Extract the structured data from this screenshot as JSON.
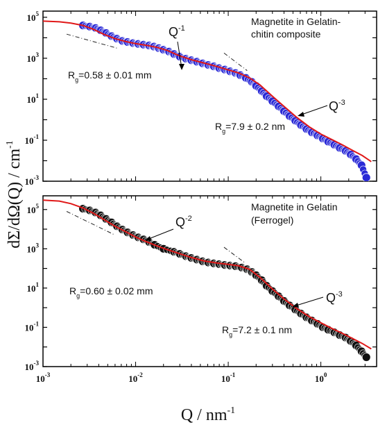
{
  "chart_data": [
    {
      "type": "scatter",
      "x_scale": "log",
      "y_scale": "log",
      "xlim": [
        0.001,
        4
      ],
      "ylim": [
        0.001,
        200000
      ],
      "y_ticks": [
        0.001,
        0.1,
        10,
        1000,
        100000
      ],
      "y_tick_labels": [
        {
          "base": "10",
          "exp": "-3"
        },
        {
          "base": "10",
          "exp": "-1"
        },
        {
          "base": "10",
          "exp": "1"
        },
        {
          "base": "10",
          "exp": "3"
        },
        {
          "base": "10",
          "exp": "5"
        }
      ],
      "legend_text": [
        "Magnetite in Gelatin-",
        "chitin composite"
      ],
      "annotations": {
        "q_slope_1": {
          "base": "Q",
          "exp": "-1"
        },
        "q_slope_3": {
          "base": "Q",
          "exp": "-3"
        },
        "rg_large": {
          "prefix": "R",
          "sub": "g",
          "value": "=0.58 ± 0.01 mm"
        },
        "rg_small": {
          "prefix": "R",
          "sub": "g",
          "value": "=7.9 ± 0.2 nm"
        }
      },
      "series": [
        {
          "role": "data",
          "color": "#2a2ad6",
          "x": [
            0.0027,
            0.0032,
            0.0037,
            0.0042,
            0.0048,
            0.0055,
            0.0063,
            0.0072,
            0.0082,
            0.0094,
            0.0107,
            0.0122,
            0.014,
            0.0158,
            0.0178,
            0.02,
            0.023,
            0.026,
            0.03,
            0.035,
            0.04,
            0.046,
            0.053,
            0.061,
            0.07,
            0.08,
            0.092,
            0.105,
            0.12,
            0.135,
            0.155,
            0.18,
            0.2,
            0.23,
            0.26,
            0.3,
            0.35,
            0.4,
            0.46,
            0.53,
            0.61,
            0.7,
            0.8,
            0.92,
            1.05,
            1.2,
            1.4,
            1.6,
            1.85,
            2.1,
            2.4,
            2.75,
            3.1
          ],
          "y": [
            40000,
            35000,
            30000,
            23000,
            17000,
            12000,
            9000,
            7000,
            6200,
            5500,
            5000,
            4600,
            4200,
            3700,
            3100,
            2600,
            2100,
            1600,
            1200,
            950,
            800,
            680,
            560,
            470,
            400,
            330,
            280,
            230,
            190,
            150,
            110,
            70,
            45,
            25,
            14,
            8,
            4.5,
            2.6,
            1.5,
            0.9,
            0.55,
            0.35,
            0.24,
            0.17,
            0.12,
            0.085,
            0.06,
            0.042,
            0.03,
            0.02,
            0.012,
            0.006,
            0.0015
          ]
        },
        {
          "role": "fit",
          "color": "#e01818",
          "x": [
            0.001,
            0.0015,
            0.002,
            0.0027,
            0.0035,
            0.0045,
            0.006,
            0.008,
            0.01,
            0.013,
            0.017,
            0.022,
            0.03,
            0.04,
            0.055,
            0.075,
            0.1,
            0.13,
            0.17,
            0.22,
            0.3,
            0.4,
            0.55,
            0.75,
            1.0,
            1.3,
            1.7,
            2.2,
            2.8,
            3.5
          ],
          "y": [
            65000,
            60000,
            52000,
            40000,
            26000,
            15000,
            9000,
            6400,
            5200,
            4300,
            3400,
            2400,
            1300,
            850,
            580,
            400,
            270,
            190,
            110,
            50,
            14,
            4.5,
            1.3,
            0.45,
            0.2,
            0.11,
            0.06,
            0.032,
            0.018,
            0.009
          ]
        }
      ]
    },
    {
      "type": "scatter",
      "x_scale": "log",
      "y_scale": "log",
      "xlim": [
        0.001,
        4
      ],
      "ylim": [
        0.001,
        500000
      ],
      "x_ticks": [
        0.001,
        0.01,
        0.1,
        1
      ],
      "x_tick_labels": [
        {
          "base": "10",
          "exp": "-3"
        },
        {
          "base": "10",
          "exp": "-2"
        },
        {
          "base": "10",
          "exp": "-1"
        },
        {
          "base": "10",
          "exp": "0"
        }
      ],
      "y_ticks": [
        0.001,
        0.1,
        10,
        1000,
        100000
      ],
      "y_tick_labels": [
        {
          "base": "10",
          "exp": "-3"
        },
        {
          "base": "10",
          "exp": "-1"
        },
        {
          "base": "10",
          "exp": "1"
        },
        {
          "base": "10",
          "exp": "3"
        },
        {
          "base": "10",
          "exp": "5"
        }
      ],
      "legend_text": [
        "Magnetite in Gelatin",
        "(Ferrogel)"
      ],
      "annotations": {
        "q_slope_2": {
          "base": "Q",
          "exp": "-2"
        },
        "q_slope_3": {
          "base": "Q",
          "exp": "-3"
        },
        "rg_large": {
          "prefix": "R",
          "sub": "g",
          "value": "=0.60 ± 0.02 mm"
        },
        "rg_small": {
          "prefix": "R",
          "sub": "g",
          "value": "=7.2 ± 0.1 nm"
        }
      },
      "series": [
        {
          "role": "data",
          "color": "#111111",
          "x": [
            0.0027,
            0.0032,
            0.0037,
            0.0042,
            0.0048,
            0.0055,
            0.0063,
            0.0072,
            0.0082,
            0.0094,
            0.0107,
            0.0122,
            0.014,
            0.016,
            0.02,
            0.026,
            0.03,
            0.035,
            0.04,
            0.046,
            0.053,
            0.061,
            0.07,
            0.08,
            0.092,
            0.105,
            0.12,
            0.14,
            0.16,
            0.18,
            0.2,
            0.23,
            0.26,
            0.3,
            0.35,
            0.4,
            0.46,
            0.53,
            0.61,
            0.7,
            0.8,
            0.92,
            1.05,
            1.2,
            1.4,
            1.6,
            1.85,
            2.1,
            2.4,
            2.75,
            3.1
          ],
          "y": [
            110000,
            90000,
            70000,
            50000,
            33000,
            22000,
            14000,
            9500,
            6800,
            5000,
            3800,
            3000,
            2200,
            1600,
            1000,
            700,
            550,
            420,
            340,
            280,
            230,
            200,
            180,
            165,
            150,
            140,
            130,
            110,
            90,
            65,
            45,
            25,
            13,
            7,
            3.8,
            2.2,
            1.3,
            0.8,
            0.5,
            0.32,
            0.22,
            0.15,
            0.1,
            0.075,
            0.055,
            0.04,
            0.03,
            0.02,
            0.012,
            0.006,
            0.003
          ]
        },
        {
          "role": "fit",
          "color": "#e01818",
          "x": [
            0.001,
            0.0015,
            0.002,
            0.0027,
            0.0035,
            0.0045,
            0.006,
            0.008,
            0.01,
            0.013,
            0.017,
            0.022,
            0.03,
            0.04,
            0.055,
            0.075,
            0.1,
            0.13,
            0.17,
            0.22,
            0.3,
            0.4,
            0.55,
            0.75,
            1.0,
            1.3,
            1.7,
            2.2,
            2.8,
            3.5
          ],
          "y": [
            300000,
            270000,
            200000,
            120000,
            65000,
            32000,
            14000,
            7000,
            4000,
            2300,
            1400,
            900,
            560,
            360,
            240,
            190,
            160,
            135,
            90,
            35,
            9,
            2.8,
            0.9,
            0.35,
            0.17,
            0.09,
            0.05,
            0.027,
            0.015,
            0.008
          ]
        }
      ]
    }
  ],
  "axis_labels": {
    "y": "dΣ/dΩ(Q) / cm",
    "y_exp": "-1",
    "x": "Q / nm",
    "x_exp": "-1"
  }
}
